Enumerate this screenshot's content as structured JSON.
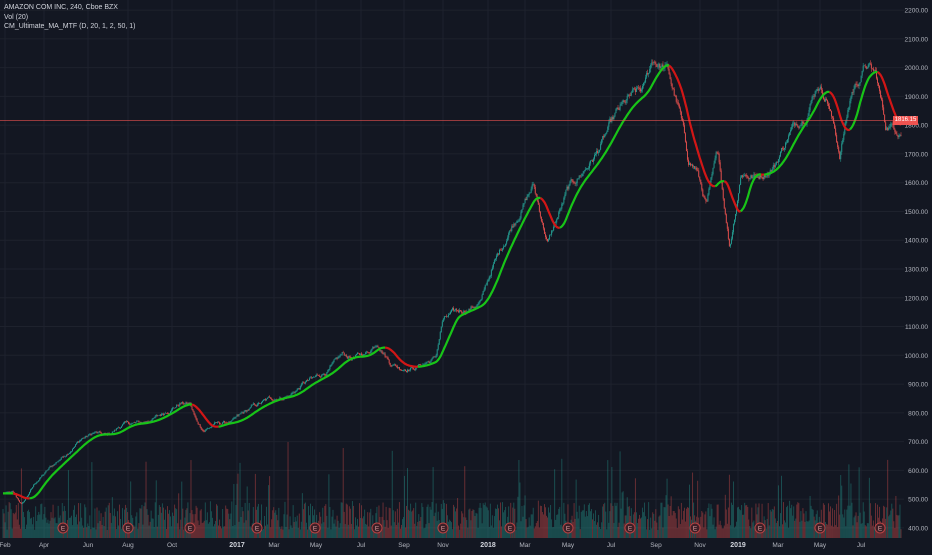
{
  "legend": {
    "line1": "AMAZON COM INC, 240, Cboe BZX",
    "line2": "Vol (20)",
    "line3": "CM_Ultimate_MA_MTF (D, 20, 1, 2, 50, 1)"
  },
  "last_price_label": "1816.15",
  "colors": {
    "background": "#131722",
    "grid": "#1e222d",
    "text": "#b2b5be",
    "up_candle": "#26a69a",
    "down_candle": "#ef5350",
    "ma_up": "#18c418",
    "ma_down": "#d11616",
    "last_price_line": "#ef5350",
    "earnings_marker": "#b54343"
  },
  "chart_data": {
    "type": "candlestick",
    "title": "AMAZON COM INC, 240, Cboe BZX",
    "y_axis": {
      "side": "right",
      "range": [
        365,
        2235
      ],
      "ticks": [
        400,
        500,
        600,
        700,
        800,
        900,
        1000,
        1100,
        1200,
        1300,
        1400,
        1500,
        1600,
        1700,
        1800,
        1900,
        2000,
        2100,
        2200
      ],
      "tick_labels": [
        "400.00",
        "500.00",
        "600.00",
        "700.00",
        "800.00",
        "900.00",
        "1000.00",
        "1100.00",
        "1200.00",
        "1300.00",
        "1400.00",
        "1500.00",
        "1600.00",
        "1700.00",
        "1800.00",
        "1900.00",
        "2000.00",
        "2100.00",
        "2200.00"
      ]
    },
    "x_axis": {
      "labels": [
        "Feb",
        "Apr",
        "Jun",
        "Aug",
        "Oct",
        "2017",
        "Mar",
        "May",
        "Jul",
        "Sep",
        "Nov",
        "2018",
        "Mar",
        "May",
        "Jul",
        "Sep",
        "Nov",
        "2019",
        "Mar",
        "May",
        "Jul"
      ],
      "bold_labels": [
        "2017",
        "2018",
        "2019"
      ]
    },
    "grid": true,
    "last_price": 1816.15,
    "earnings_marker_label": "E",
    "earnings_marker_count": 14,
    "price_path": {
      "dates": [
        "2016-02-09",
        "2016-02-23",
        "2016-03-15",
        "2016-04-05",
        "2016-04-28",
        "2016-05-20",
        "2016-06-08",
        "2016-06-27",
        "2016-07-20",
        "2016-08-17",
        "2016-09-12",
        "2016-09-27",
        "2016-10-12",
        "2016-10-26",
        "2016-11-04",
        "2016-11-15",
        "2016-12-01",
        "2016-12-28",
        "2017-01-26",
        "2017-02-23",
        "2017-03-20",
        "2017-04-12",
        "2017-04-28",
        "2017-05-22",
        "2017-06-06",
        "2017-06-22",
        "2017-07-13",
        "2017-07-27",
        "2017-08-14",
        "2017-08-28",
        "2017-09-21",
        "2017-10-20",
        "2017-10-30",
        "2017-11-13",
        "2017-12-13",
        "2017-12-26",
        "2018-01-10",
        "2018-01-24",
        "2018-02-08",
        "2018-03-12",
        "2018-04-02",
        "2018-05-01",
        "2018-06-12",
        "2018-07-11",
        "2018-07-31",
        "2018-08-20",
        "2018-09-03",
        "2018-09-24",
        "2018-10-12",
        "2018-10-24",
        "2018-11-05",
        "2018-11-20",
        "2018-12-07",
        "2018-12-24",
        "2019-01-10",
        "2019-02-01",
        "2019-02-27",
        "2019-03-21",
        "2019-04-15",
        "2019-05-02",
        "2019-05-17",
        "2019-06-03",
        "2019-06-20",
        "2019-07-11",
        "2019-07-26",
        "2019-08-09",
        "2019-08-26"
      ],
      "close": [
        520,
        480,
        560,
        610,
        660,
        710,
        730,
        720,
        760,
        765,
        790,
        815,
        835,
        830,
        770,
        740,
        760,
        770,
        820,
        850,
        860,
        905,
        920,
        960,
        1000,
        990,
        1010,
        1050,
        980,
        960,
        960,
        990,
        1120,
        1140,
        1170,
        1190,
        1300,
        1370,
        1450,
        1590,
        1390,
        1570,
        1700,
        1830,
        1890,
        1920,
        2030,
        1990,
        1840,
        1680,
        1650,
        1520,
        1700,
        1380,
        1640,
        1620,
        1660,
        1770,
        1850,
        1950,
        1890,
        1700,
        1910,
        2010,
        1970,
        1800,
        1790
      ]
    },
    "volume": {
      "label": "Vol (20)",
      "type": "bar",
      "baseline_peak_count": 0
    }
  }
}
